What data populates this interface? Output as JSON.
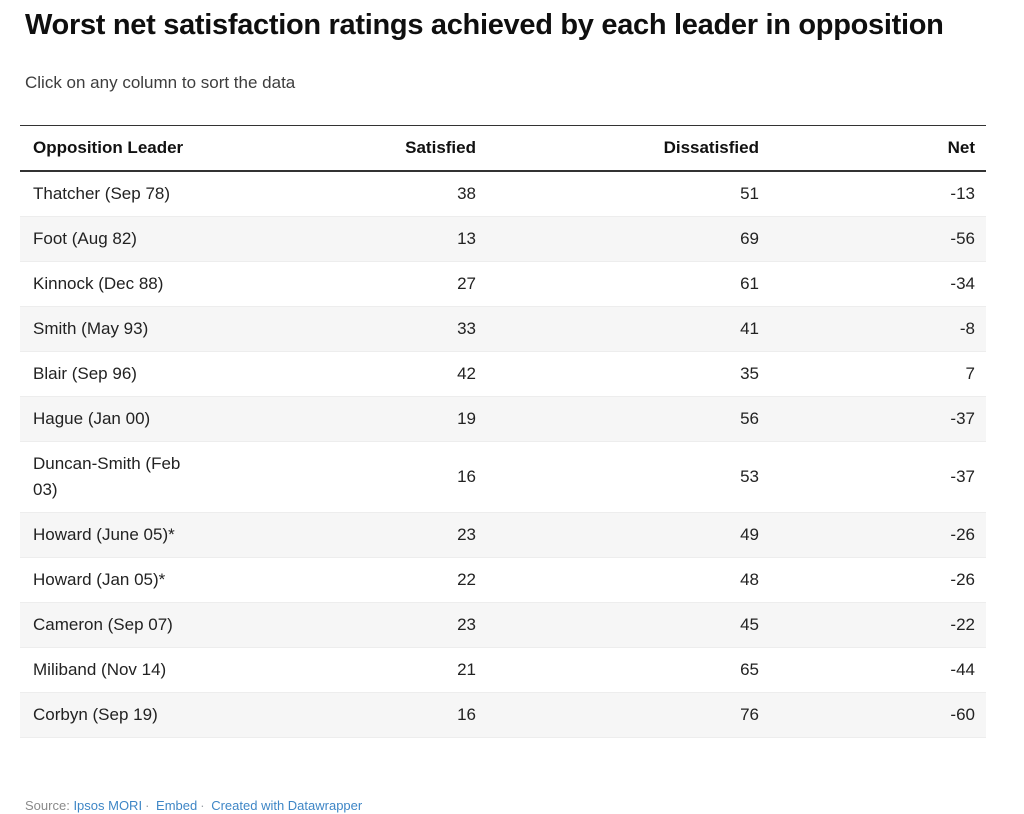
{
  "page": {
    "title": "Worst net satisfaction ratings achieved by each leader in opposition",
    "subtitle": "Click on any column to sort the data"
  },
  "table": {
    "columns": [
      "Opposition Leader",
      "Satisfied",
      "Dissatisfied",
      "Net"
    ],
    "rows": [
      {
        "leader": "Thatcher (Sep 78)",
        "satisfied": "38",
        "dissatisfied": "51",
        "net": "-13"
      },
      {
        "leader": "Foot (Aug 82)",
        "satisfied": "13",
        "dissatisfied": "69",
        "net": "-56"
      },
      {
        "leader": "Kinnock (Dec 88)",
        "satisfied": "27",
        "dissatisfied": "61",
        "net": "-34"
      },
      {
        "leader": "Smith (May 93)",
        "satisfied": "33",
        "dissatisfied": "41",
        "net": "-8"
      },
      {
        "leader": "Blair (Sep 96)",
        "satisfied": "42",
        "dissatisfied": "35",
        "net": "7"
      },
      {
        "leader": "Hague (Jan 00)",
        "satisfied": "19",
        "dissatisfied": "56",
        "net": "-37"
      },
      {
        "leader": "Duncan-Smith (Feb 03)",
        "satisfied": "16",
        "dissatisfied": "53",
        "net": "-37"
      },
      {
        "leader": "Howard (June 05)*",
        "satisfied": "23",
        "dissatisfied": "49",
        "net": "-26"
      },
      {
        "leader": "Howard (Jan 05)*",
        "satisfied": "22",
        "dissatisfied": "48",
        "net": "-26"
      },
      {
        "leader": "Cameron (Sep 07)",
        "satisfied": "23",
        "dissatisfied": "45",
        "net": "-22"
      },
      {
        "leader": "Miliband (Nov 14)",
        "satisfied": "21",
        "dissatisfied": "65",
        "net": "-44"
      },
      {
        "leader": "Corbyn (Sep 19)",
        "satisfied": "16",
        "dissatisfied": "76",
        "net": "-60"
      }
    ]
  },
  "footer": {
    "source_label": "Source:",
    "source_link": "Ipsos MORI",
    "separator": "·",
    "embed_link": "Embed",
    "credit_link": "Created with Datawrapper"
  },
  "colors": {
    "link_blue": "#3e86c6",
    "row_stripe": "#f6f6f6",
    "border_dark": "#333333",
    "text": "#222222",
    "muted_gray": "#8a8a8a"
  },
  "chart_data": {
    "type": "table",
    "title": "Worst net satisfaction ratings achieved by each leader in opposition",
    "subtitle": "Click on any column to sort the data",
    "columns": [
      "Opposition Leader",
      "Satisfied",
      "Dissatisfied",
      "Net"
    ],
    "rows": [
      [
        "Thatcher (Sep 78)",
        38,
        51,
        -13
      ],
      [
        "Foot (Aug 82)",
        13,
        69,
        -56
      ],
      [
        "Kinnock (Dec 88)",
        27,
        61,
        -34
      ],
      [
        "Smith (May 93)",
        33,
        41,
        -8
      ],
      [
        "Blair (Sep 96)",
        42,
        35,
        7
      ],
      [
        "Hague (Jan 00)",
        19,
        56,
        -37
      ],
      [
        "Duncan-Smith (Feb 03)",
        16,
        53,
        -37
      ],
      [
        "Howard (June 05)*",
        23,
        49,
        -26
      ],
      [
        "Howard (Jan 05)*",
        22,
        48,
        -26
      ],
      [
        "Cameron (Sep 07)",
        23,
        45,
        -22
      ],
      [
        "Miliband (Nov 14)",
        21,
        65,
        -44
      ],
      [
        "Corbyn (Sep 19)",
        16,
        76,
        -60
      ]
    ],
    "layout": {
      "zebra_striping": true,
      "first_stripe_row_index": 1,
      "sortable_columns": true,
      "numeric_columns_right_aligned": true
    }
  }
}
